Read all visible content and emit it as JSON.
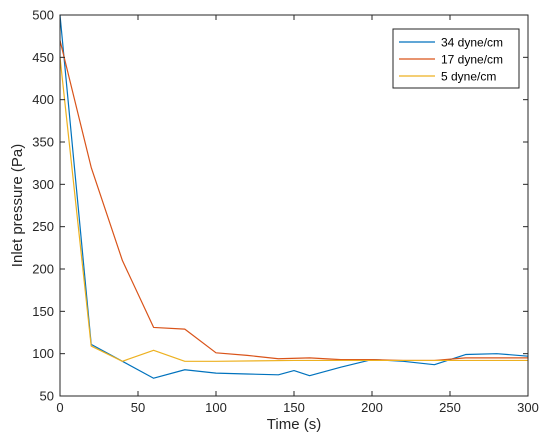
{
  "chart_data": {
    "type": "line",
    "xlabel": "Time (s)",
    "ylabel": "Inlet pressure (Pa)",
    "xlim": [
      0,
      300
    ],
    "ylim": [
      50,
      500
    ],
    "xticks": [
      0,
      50,
      100,
      150,
      200,
      250,
      300
    ],
    "yticks": [
      50,
      100,
      150,
      200,
      250,
      300,
      350,
      400,
      450,
      500
    ],
    "grid": false,
    "legend_position": "top-right",
    "series": [
      {
        "name": "34 dyne/cm",
        "color": "#0072BD",
        "x": [
          0,
          20,
          40,
          60,
          80,
          100,
          120,
          140,
          150,
          160,
          180,
          200,
          220,
          240,
          260,
          280,
          300
        ],
        "y": [
          500,
          111,
          91,
          71,
          81,
          77,
          76,
          75,
          80,
          74,
          84,
          93,
          91,
          87,
          99,
          100,
          97
        ]
      },
      {
        "name": "17 dyne/cm",
        "color": "#D95319",
        "x": [
          0,
          20,
          40,
          60,
          80,
          100,
          120,
          140,
          160,
          180,
          200,
          220,
          240,
          260,
          280,
          300
        ],
        "y": [
          470,
          320,
          210,
          131,
          129,
          101,
          98,
          94,
          95,
          93,
          93,
          92,
          92,
          95,
          95,
          95
        ]
      },
      {
        "name": "5 dyne/cm",
        "color": "#EDB120",
        "x": [
          0,
          20,
          40,
          60,
          80,
          100,
          150,
          200,
          250,
          300
        ],
        "y": [
          450,
          109,
          91,
          104,
          91,
          91,
          92,
          92,
          92,
          92
        ]
      }
    ]
  }
}
